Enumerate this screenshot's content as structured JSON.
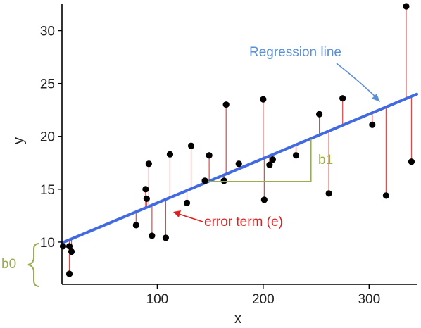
{
  "chart_data": {
    "type": "scatter",
    "title": "",
    "xlabel": "x",
    "ylabel": "y",
    "xlim": [
      10,
      345
    ],
    "ylim": [
      6,
      32.5
    ],
    "xticks": [
      100,
      200,
      300
    ],
    "yticks": [
      10,
      15,
      20,
      25,
      30
    ],
    "grid": false,
    "legend": "none",
    "regression": {
      "intercept": 9.5,
      "slope": 0.04201
    },
    "points": [
      {
        "x": 11,
        "y": 9.6
      },
      {
        "x": 17,
        "y": 7.0
      },
      {
        "x": 17,
        "y": 9.6
      },
      {
        "x": 19,
        "y": 9.1
      },
      {
        "x": 80,
        "y": 11.6
      },
      {
        "x": 89,
        "y": 15.0
      },
      {
        "x": 90,
        "y": 14.1
      },
      {
        "x": 92,
        "y": 17.4
      },
      {
        "x": 95,
        "y": 10.6
      },
      {
        "x": 108,
        "y": 10.4
      },
      {
        "x": 112,
        "y": 18.3
      },
      {
        "x": 128,
        "y": 13.7
      },
      {
        "x": 132,
        "y": 19.1
      },
      {
        "x": 145,
        "y": 15.8
      },
      {
        "x": 149,
        "y": 18.2
      },
      {
        "x": 163,
        "y": 15.8
      },
      {
        "x": 165,
        "y": 23.0
      },
      {
        "x": 177,
        "y": 17.4
      },
      {
        "x": 200,
        "y": 23.5
      },
      {
        "x": 201,
        "y": 14.0
      },
      {
        "x": 206,
        "y": 17.3
      },
      {
        "x": 209,
        "y": 17.8
      },
      {
        "x": 231,
        "y": 18.2
      },
      {
        "x": 253,
        "y": 22.1
      },
      {
        "x": 262,
        "y": 14.6
      },
      {
        "x": 275,
        "y": 23.6
      },
      {
        "x": 303,
        "y": 21.1
      },
      {
        "x": 316,
        "y": 14.4
      },
      {
        "x": 335,
        "y": 32.3
      },
      {
        "x": 340,
        "y": 17.6
      }
    ],
    "annotations": {
      "regression_label": "Regression line",
      "error_label": "error term (e)",
      "slope_label": "b1",
      "intercept_label": "b0"
    },
    "colors": {
      "line": "#4169e1",
      "residual": "#e04848",
      "point": "#000000",
      "regression_label": "#5b8fd6",
      "error_label": "#e02020",
      "bracket": "#98ad50"
    }
  }
}
